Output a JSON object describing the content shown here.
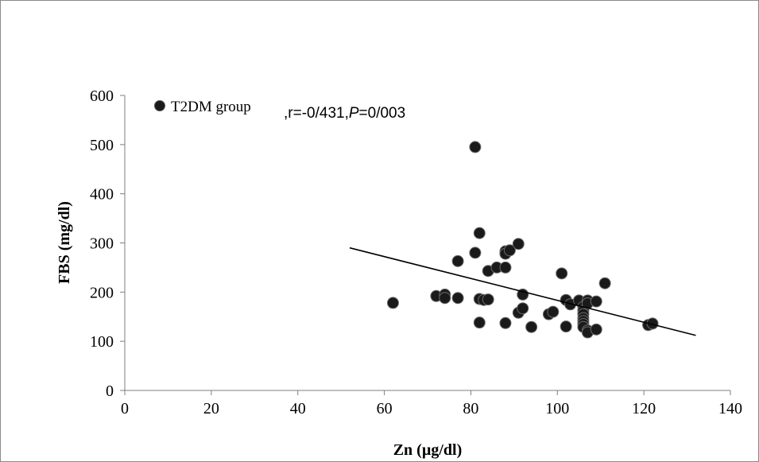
{
  "chart_data": {
    "type": "scatter",
    "xlabel": "Zn (µg/dl)",
    "ylabel": "FBS (mg/dl)",
    "xlim": [
      0,
      140
    ],
    "ylim": [
      0,
      600
    ],
    "xticks": [
      "0",
      "20",
      "40",
      "60",
      "80",
      "100",
      "120",
      "140"
    ],
    "yticks": [
      "0",
      "100",
      "200",
      "300",
      "400",
      "500",
      "600"
    ],
    "grid": false,
    "legend_position": "top-left",
    "legend": {
      "label": "T2DM group",
      "stats": ",r=-0/431,",
      "p_symbol": "P",
      "p_value": "=0/003"
    },
    "marker_color": "#1a1a1a",
    "trendline": {
      "x": [
        52,
        132
      ],
      "y": [
        290,
        112
      ]
    },
    "series": [
      {
        "name": "T2DM group",
        "points": [
          [
            62,
            178
          ],
          [
            72,
            192
          ],
          [
            74,
            195
          ],
          [
            74,
            188
          ],
          [
            77,
            188
          ],
          [
            77,
            263
          ],
          [
            81,
            495
          ],
          [
            81,
            280
          ],
          [
            82,
            320
          ],
          [
            82,
            186
          ],
          [
            82,
            138
          ],
          [
            83,
            184
          ],
          [
            84,
            185
          ],
          [
            84,
            243
          ],
          [
            86,
            250
          ],
          [
            88,
            283
          ],
          [
            88,
            278
          ],
          [
            88,
            250
          ],
          [
            88,
            137
          ],
          [
            89,
            285
          ],
          [
            91,
            298
          ],
          [
            91,
            158
          ],
          [
            92,
            195
          ],
          [
            92,
            167
          ],
          [
            94,
            129
          ],
          [
            98,
            155
          ],
          [
            99,
            160
          ],
          [
            101,
            238
          ],
          [
            102,
            184
          ],
          [
            102,
            130
          ],
          [
            103,
            175
          ],
          [
            105,
            183
          ],
          [
            106,
            170
          ],
          [
            106,
            162
          ],
          [
            106,
            155
          ],
          [
            106,
            147
          ],
          [
            106,
            141
          ],
          [
            106,
            135
          ],
          [
            106,
            129
          ],
          [
            107,
            183
          ],
          [
            107,
            122
          ],
          [
            107,
            118
          ],
          [
            107,
            177
          ],
          [
            109,
            181
          ],
          [
            109,
            124
          ],
          [
            111,
            218
          ],
          [
            121,
            133
          ],
          [
            122,
            136
          ]
        ]
      }
    ]
  }
}
